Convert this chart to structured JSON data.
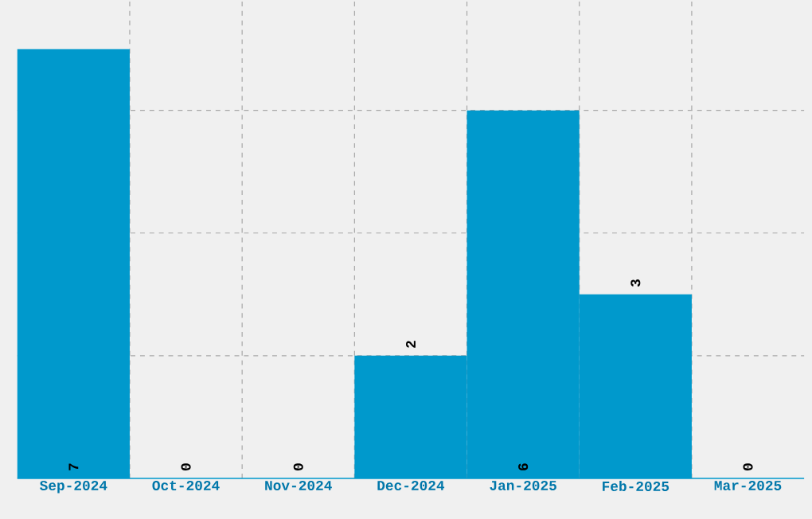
{
  "chart_data": {
    "type": "bar",
    "categories": [
      "Sep-2024",
      "Oct-2024",
      "Nov-2024",
      "Dec-2024",
      "Jan-2025",
      "Feb-2025",
      "Mar-2025"
    ],
    "values": [
      7,
      0,
      0,
      2,
      6,
      3,
      0
    ],
    "color": "#0099cc",
    "ylim": [
      0,
      7.8
    ],
    "yticks": [
      {
        "value": 2,
        "label": null
      },
      {
        "value": 4,
        "label": null
      },
      {
        "value": 6,
        "label": null
      }
    ],
    "tick_labels": "x",
    "grid": true,
    "data_labels": true
  }
}
